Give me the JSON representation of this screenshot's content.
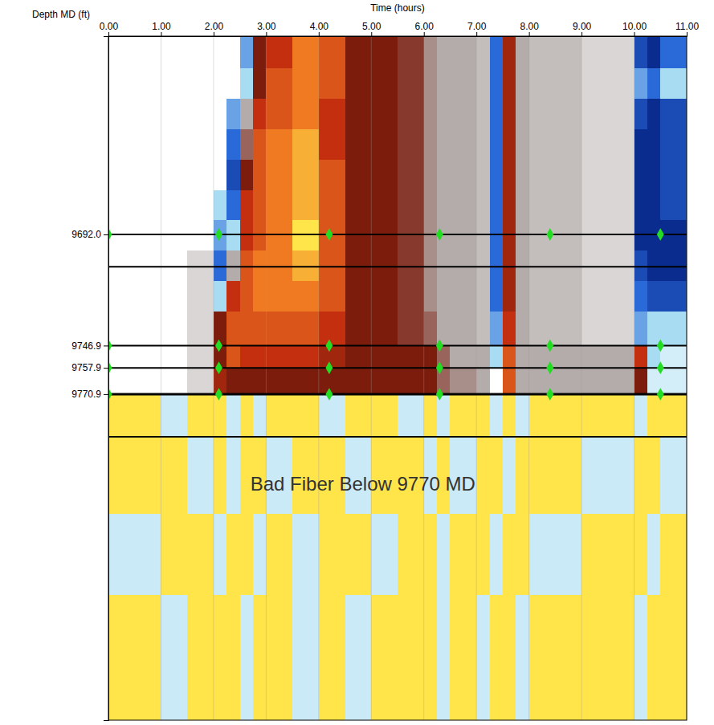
{
  "chart_data": {
    "type": "heatmap",
    "x_label": "Time (hours)",
    "y_label": "Depth MD (ft)",
    "xlim": [
      0,
      11
    ],
    "ylim": [
      9594,
      9932
    ],
    "xticks": [
      {
        "value": 0,
        "label": "0.00"
      },
      {
        "value": 1,
        "label": "1.00"
      },
      {
        "value": 2,
        "label": "2.00"
      },
      {
        "value": 3,
        "label": "3.00"
      },
      {
        "value": 4,
        "label": "4.00"
      },
      {
        "value": 5,
        "label": "5.00"
      },
      {
        "value": 6,
        "label": "6.00"
      },
      {
        "value": 7,
        "label": "7.00"
      },
      {
        "value": 8,
        "label": "8.00"
      },
      {
        "value": 9,
        "label": "9.00"
      },
      {
        "value": 10,
        "label": "10.00"
      },
      {
        "value": 11,
        "label": "11.00"
      }
    ],
    "yticks": [
      {
        "value": 9692,
        "label": "9692.0"
      },
      {
        "value": 9746.9,
        "label": "9746.9"
      },
      {
        "value": 9757.9,
        "label": "9757.9"
      },
      {
        "value": 9770.9,
        "label": "9770.9"
      }
    ],
    "grid": true,
    "lines": [
      9708,
      9792
    ],
    "color_range": [
      -3,
      5
    ],
    "x_edges": [
      0,
      1,
      1.5,
      2,
      2.25,
      2.5,
      2.75,
      3,
      3.5,
      4,
      4.5,
      5,
      5.5,
      6,
      6.25,
      6.5,
      7,
      7.25,
      7.5,
      7.75,
      8,
      9,
      10,
      10.25,
      10.5,
      11
    ],
    "y_edges": [
      9594,
      9610,
      9625,
      9640,
      9655,
      9670,
      9685,
      9700,
      9715,
      9730,
      9747,
      9758,
      9771,
      9792,
      9830,
      9870,
      9932
    ],
    "values": [
      [
        0,
        0,
        0,
        0,
        0,
        -1.5,
        2,
        3,
        4,
        3.5,
        2,
        2,
        1.8,
        1.2,
        1,
        1,
        0.8,
        -2,
        2.5,
        1,
        0.8,
        0.5,
        -2.5,
        -3,
        -2
      ],
      [
        0,
        0,
        0,
        0,
        0,
        -1,
        2,
        3.5,
        4,
        3.5,
        2,
        2,
        1.8,
        1.2,
        1,
        1,
        0.8,
        -2,
        2.5,
        1,
        0.8,
        0.5,
        -1.5,
        -2,
        -1
      ],
      [
        0,
        0,
        0,
        0,
        -1.5,
        1,
        3,
        3.5,
        4,
        3,
        2,
        2,
        1.8,
        1.2,
        1,
        1,
        0.8,
        -2,
        2.5,
        1,
        0.8,
        0.5,
        -2.5,
        -3,
        -2.5
      ],
      [
        0,
        0,
        0,
        0,
        -2,
        1.5,
        3.5,
        4,
        4.5,
        3,
        2,
        2,
        1.8,
        1.2,
        1,
        1,
        0.8,
        -2,
        2.5,
        1,
        0.8,
        0.5,
        -3,
        -3,
        -2.5
      ],
      [
        0,
        0,
        0,
        0,
        -2.5,
        2,
        3.5,
        4,
        4.5,
        3.5,
        2,
        2,
        1.8,
        1.2,
        1,
        1,
        0.8,
        -2,
        2.5,
        1,
        0.8,
        0.5,
        -3,
        -3,
        -2.5
      ],
      [
        0,
        0,
        0,
        -1,
        -2,
        3,
        3.5,
        4,
        4.5,
        3.5,
        2,
        2,
        1.8,
        1.2,
        1,
        1,
        0.8,
        -2,
        2.5,
        1,
        0.8,
        0.5,
        -3,
        -3,
        -2.5
      ],
      [
        0,
        0,
        0,
        -1.5,
        -1,
        3,
        3.5,
        4,
        5,
        3.5,
        2,
        2,
        1.8,
        1.2,
        1,
        1,
        0.8,
        -2,
        2.5,
        1,
        0.8,
        0.5,
        -3,
        -3,
        -3
      ],
      [
        0,
        0,
        0.5,
        -2,
        1,
        3.5,
        4,
        4,
        4.5,
        3.5,
        2,
        2,
        1.8,
        1.2,
        1,
        1,
        0.8,
        -2,
        2.5,
        1,
        0.8,
        0.5,
        -2.5,
        -3,
        -3
      ],
      [
        0,
        0,
        0.5,
        -1,
        3,
        3.5,
        4,
        4,
        4,
        3.5,
        2,
        2,
        1.8,
        1.2,
        1,
        1,
        0.8,
        -2,
        2.5,
        1,
        0.8,
        0.5,
        -2,
        -2.5,
        -2.5
      ],
      [
        0,
        0,
        0.5,
        2,
        3.5,
        3.5,
        3.5,
        3.5,
        3.5,
        3,
        2,
        2,
        1.8,
        1.5,
        1,
        1,
        0.8,
        -1.5,
        3,
        1,
        0.8,
        0.5,
        -1.5,
        -1,
        -1
      ],
      [
        0,
        0,
        0.5,
        2,
        3.5,
        3,
        3,
        3,
        3,
        2.5,
        2,
        2,
        2,
        2,
        1.5,
        1,
        1,
        -1,
        3.5,
        1,
        1,
        1,
        3,
        -1,
        -0.5
      ],
      [
        0,
        0,
        0.5,
        2.5,
        2,
        2,
        2,
        2,
        2,
        2,
        2,
        2,
        2,
        2,
        1.5,
        1.2,
        1,
        0,
        3.5,
        1,
        1,
        1,
        2,
        -0.5,
        -0.5
      ],
      [
        5,
        -0.6,
        5,
        5,
        -0.6,
        5,
        -0.6,
        5,
        5,
        -0.6,
        5,
        5,
        -0.6,
        5,
        -0.6,
        5,
        5,
        -0.6,
        5,
        -0.6,
        5,
        5,
        -0.6,
        5,
        5
      ],
      [
        5,
        5,
        -0.6,
        5,
        -0.6,
        5,
        5,
        -0.6,
        5,
        5,
        -0.6,
        5,
        5,
        -0.6,
        5,
        -0.6,
        5,
        5,
        -0.6,
        5,
        5,
        -0.6,
        5,
        5,
        -0.6
      ],
      [
        -0.6,
        5,
        5,
        -0.6,
        5,
        5,
        -0.6,
        5,
        -0.6,
        5,
        5,
        -0.6,
        5,
        5,
        -0.6,
        5,
        5,
        -0.6,
        5,
        5,
        -0.6,
        5,
        5,
        -0.6,
        5
      ],
      [
        5,
        -0.6,
        5,
        5,
        5,
        -0.6,
        5,
        5,
        -0.6,
        5,
        -0.6,
        5,
        5,
        5,
        -0.6,
        5,
        -0.6,
        5,
        5,
        -0.6,
        5,
        5,
        -0.6,
        5,
        5
      ]
    ],
    "markers": {
      "color": "#22dd22",
      "marker": "diamond",
      "x": [
        0,
        2.1,
        4.2,
        6.3,
        8.4,
        10.5,
        0,
        2.1,
        4.2,
        6.3,
        8.4,
        10.5,
        0,
        2.1,
        4.2,
        6.3,
        8.4,
        10.5,
        0,
        2.1,
        4.2,
        6.3,
        8.4,
        10.5
      ],
      "y": [
        9692,
        9692,
        9692,
        9692,
        9692,
        9692,
        9746.9,
        9746.9,
        9746.9,
        9746.9,
        9746.9,
        9746.9,
        9757.9,
        9757.9,
        9757.9,
        9757.9,
        9757.9,
        9757.9,
        9770.9,
        9770.9,
        9770.9,
        9770.9,
        9770.9,
        9770.9
      ]
    },
    "annotations": [
      {
        "text": "Bad Fiber Below 9770 MD",
        "x": 2.7,
        "y": 9816
      }
    ]
  }
}
